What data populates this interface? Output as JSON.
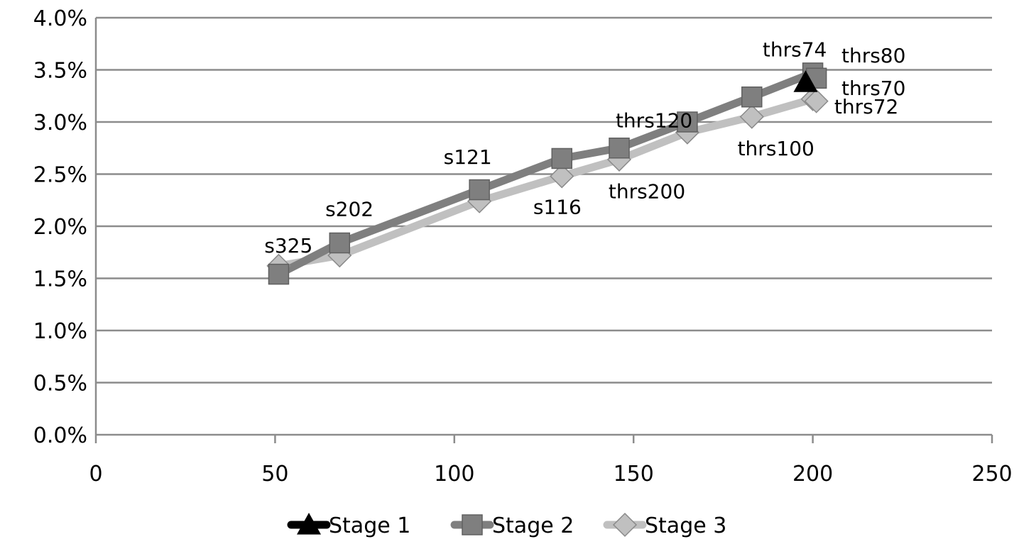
{
  "chart_data": {
    "type": "line",
    "title": "",
    "xlabel": "",
    "ylabel": "",
    "xlim": [
      0,
      250
    ],
    "ylim": [
      0,
      4.0
    ],
    "x_ticks": [
      "0",
      "50",
      "100",
      "150",
      "200",
      "250"
    ],
    "y_ticks": [
      "0.0%",
      "0.5%",
      "1.0%",
      "1.5%",
      "2.0%",
      "2.5%",
      "3.0%",
      "3.5%",
      "4.0%"
    ],
    "grid": "horizontal",
    "legend_position": "bottom",
    "series": [
      {
        "name": "Stage 1",
        "color": "#000000",
        "marker": "triangle",
        "points": [
          {
            "x": 198,
            "y": 3.38
          }
        ]
      },
      {
        "name": "Stage 2",
        "color": "#7f7f7f",
        "marker": "square",
        "points": [
          {
            "x": 51,
            "y": 1.54
          },
          {
            "x": 68,
            "y": 1.84
          },
          {
            "x": 107,
            "y": 2.35
          },
          {
            "x": 130,
            "y": 2.65
          },
          {
            "x": 146,
            "y": 2.75
          },
          {
            "x": 165,
            "y": 3.0
          },
          {
            "x": 183,
            "y": 3.24
          },
          {
            "x": 200,
            "y": 3.47
          },
          {
            "x": 201,
            "y": 3.42
          }
        ]
      },
      {
        "name": "Stage 3",
        "color": "#c0c0c0",
        "marker": "diamond",
        "points": [
          {
            "x": 51,
            "y": 1.62
          },
          {
            "x": 68,
            "y": 1.72
          },
          {
            "x": 107,
            "y": 2.24
          },
          {
            "x": 130,
            "y": 2.48
          },
          {
            "x": 146,
            "y": 2.64
          },
          {
            "x": 165,
            "y": 2.9
          },
          {
            "x": 183,
            "y": 3.05
          },
          {
            "x": 200,
            "y": 3.22
          },
          {
            "x": 201,
            "y": 3.2
          }
        ]
      }
    ],
    "annotations": [
      {
        "text": "s325",
        "x": 47,
        "y": 1.75
      },
      {
        "text": "s202",
        "x": 64,
        "y": 2.1
      },
      {
        "text": "s121",
        "x": 97,
        "y": 2.6
      },
      {
        "text": "s116",
        "x": 122,
        "y": 2.12
      },
      {
        "text": "thrs200",
        "x": 143,
        "y": 2.27
      },
      {
        "text": "thrs120",
        "x": 145,
        "y": 2.95
      },
      {
        "text": "thrs100",
        "x": 179,
        "y": 2.68
      },
      {
        "text": "thrs74",
        "x": 186,
        "y": 3.63
      },
      {
        "text": "thrs80",
        "x": 208,
        "y": 3.57
      },
      {
        "text": "thrs70",
        "x": 208,
        "y": 3.26
      },
      {
        "text": "thrs72",
        "x": 206,
        "y": 3.08
      }
    ]
  }
}
